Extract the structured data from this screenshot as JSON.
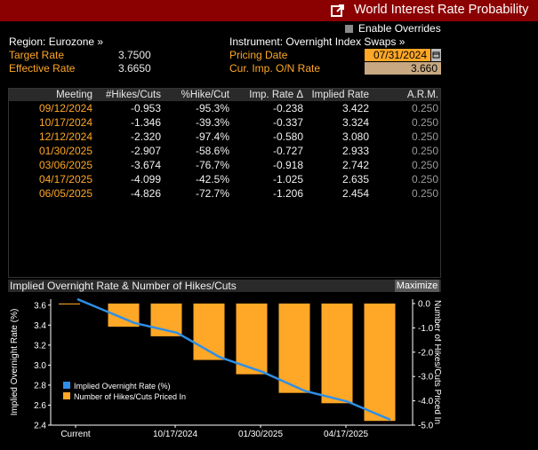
{
  "window": {
    "title": "World Interest Rate Probability"
  },
  "options": {
    "enable_overrides": "Enable Overrides"
  },
  "summary": {
    "region_label": "Region: Eurozone »",
    "target_rate_label": "Target Rate",
    "target_rate_value": "3.7500",
    "effective_rate_label": "Effective Rate",
    "effective_rate_value": "3.6650",
    "instrument_label": "Instrument: Overnight Index Swaps »",
    "pricing_date_label": "Pricing Date",
    "pricing_date_value": "07/31/2024",
    "cur_imp_label": "Cur. Imp. O/N Rate",
    "cur_imp_value": "3.660"
  },
  "table": {
    "headers": [
      "Meeting",
      "#Hikes/Cuts",
      "%Hike/Cut",
      "Imp. Rate Δ",
      "Implied Rate",
      "A.R.M."
    ],
    "rows": [
      [
        "09/12/2024",
        "-0.953",
        "-95.3%",
        "-0.238",
        "3.422",
        "0.250"
      ],
      [
        "10/17/2024",
        "-1.346",
        "-39.3%",
        "-0.337",
        "3.324",
        "0.250"
      ],
      [
        "12/12/2024",
        "-2.320",
        "-97.4%",
        "-0.580",
        "3.080",
        "0.250"
      ],
      [
        "01/30/2025",
        "-2.907",
        "-58.6%",
        "-0.727",
        "2.933",
        "0.250"
      ],
      [
        "03/06/2025",
        "-3.674",
        "-76.7%",
        "-0.918",
        "2.742",
        "0.250"
      ],
      [
        "04/17/2025",
        "-4.099",
        "-42.5%",
        "-1.025",
        "2.635",
        "0.250"
      ],
      [
        "06/05/2025",
        "-4.826",
        "-72.7%",
        "-1.206",
        "2.454",
        "0.250"
      ]
    ]
  },
  "chart_panel": {
    "title": "Implied Overnight Rate & Number of Hikes/Cuts",
    "maximize_label": "Maximize"
  },
  "chart_data": {
    "type": "bar",
    "categories": [
      "Current",
      "09/12/2024",
      "10/17/2024",
      "12/12/2024",
      "01/30/2025",
      "03/06/2025",
      "04/17/2025",
      "06/05/2025"
    ],
    "x_tick_labels": [
      "Current",
      "10/17/2024",
      "01/30/2025",
      "04/17/2025"
    ],
    "series": [
      {
        "name": "Implied Overnight Rate (%)",
        "type": "line",
        "axis": "left",
        "color": "#2f8fe6",
        "values": [
          3.66,
          3.422,
          3.324,
          3.08,
          2.933,
          2.742,
          2.635,
          2.454
        ]
      },
      {
        "name": "Number of Hikes/Cuts Priced In",
        "type": "bar",
        "axis": "right",
        "color": "#ffa726",
        "values": [
          0,
          -0.953,
          -1.346,
          -2.32,
          -2.907,
          -3.674,
          -4.099,
          -4.826
        ]
      }
    ],
    "ylabel": "Implied Overnight Rate (%)",
    "y2label": "Number of Hikes/Cuts Priced In",
    "ylim": [
      2.4,
      3.66
    ],
    "y_ticks": [
      "3.6",
      "3.4",
      "3.2",
      "3.0",
      "2.8",
      "2.6",
      "2.4"
    ],
    "y2lim": [
      -5.0,
      0.0
    ],
    "y2_ticks": [
      "0.0",
      "-1.0",
      "-2.0",
      "-3.0",
      "-4.0",
      "-5.0"
    ],
    "legend_position": "bottom-left",
    "grid": false
  },
  "colors": {
    "title_bg": "#8b0000",
    "accent_orange": "#ffa726",
    "line_blue": "#2f8fe6"
  }
}
